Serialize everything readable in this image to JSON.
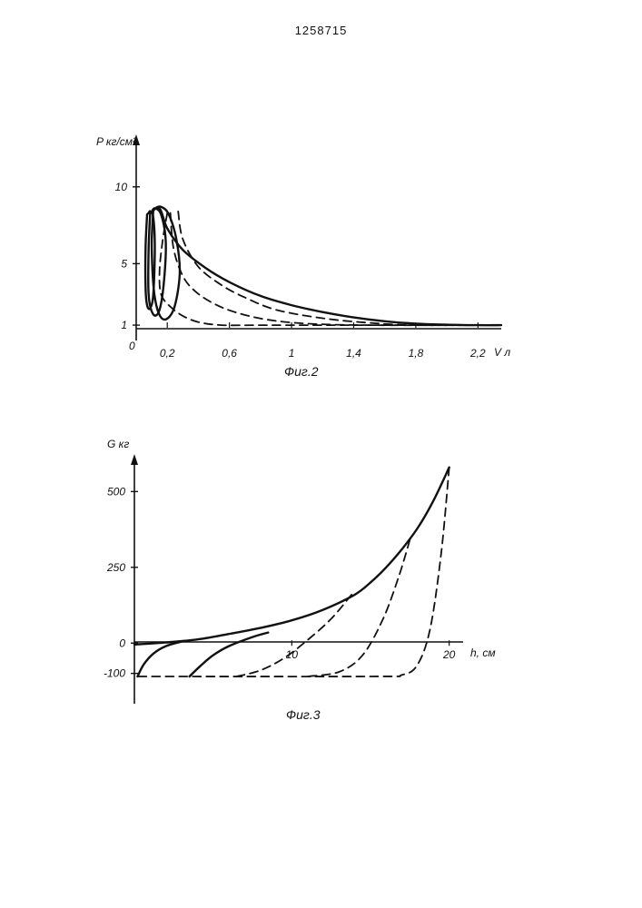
{
  "document": {
    "number": "1258715"
  },
  "figures": [
    {
      "caption": "Фиг.2",
      "y_label": "P кг/см²",
      "x_label": "V л",
      "origin_label": "0"
    },
    {
      "caption": "Фиг.3",
      "y_label": "G кг",
      "x_label": "h, см"
    }
  ],
  "chart_data": [
    {
      "type": "line",
      "title": "Фиг.2",
      "xlabel": "V л",
      "ylabel": "P кг/см²",
      "xlim": [
        0,
        2.35
      ],
      "ylim": [
        0,
        13
      ],
      "x_ticks": [
        {
          "value": 0.2,
          "label": "0,2"
        },
        {
          "value": 0.6,
          "label": "0,6"
        },
        {
          "value": 1.0,
          "label": "1"
        },
        {
          "value": 1.4,
          "label": "1,4"
        },
        {
          "value": 1.8,
          "label": "1,8"
        },
        {
          "value": 2.2,
          "label": "2,2"
        }
      ],
      "y_ticks": [
        {
          "value": 1,
          "label": "1"
        },
        {
          "value": 5,
          "label": "5"
        },
        {
          "value": 10,
          "label": "10"
        }
      ],
      "series": [
        {
          "name": "compression envelope",
          "style": "solid",
          "x": [
            0.09,
            0.15,
            0.2,
            0.3,
            0.45,
            0.6,
            0.8,
            1.0,
            1.2,
            1.4,
            1.6,
            1.8,
            2.0,
            2.2,
            2.35
          ],
          "y": [
            8.3,
            8.6,
            7.3,
            5.9,
            4.7,
            3.8,
            2.9,
            2.3,
            1.85,
            1.5,
            1.25,
            1.1,
            1.03,
            1.0,
            1.0
          ]
        },
        {
          "name": "cycle 1",
          "style": "solid",
          "x": [
            0.07,
            0.06,
            0.06,
            0.07,
            0.09,
            0.11,
            0.12,
            0.11,
            0.09,
            0.08,
            0.07
          ],
          "y": [
            8.2,
            6.0,
            3.5,
            2.3,
            2.1,
            3.0,
            6.0,
            8.0,
            8.4,
            8.3,
            8.2
          ]
        },
        {
          "name": "cycle 2",
          "style": "solid",
          "x": [
            0.09,
            0.08,
            0.08,
            0.11,
            0.15,
            0.18,
            0.19,
            0.16,
            0.12,
            0.1,
            0.09
          ],
          "y": [
            8.3,
            6.0,
            3.0,
            1.7,
            2.0,
            4.0,
            6.5,
            8.2,
            8.6,
            8.4,
            8.3
          ]
        },
        {
          "name": "cycle 3",
          "style": "solid",
          "x": [
            0.11,
            0.1,
            0.12,
            0.17,
            0.24,
            0.28,
            0.26,
            0.21,
            0.16,
            0.12,
            0.11
          ],
          "y": [
            8.5,
            6.0,
            2.8,
            1.4,
            2.0,
            4.3,
            6.5,
            8.2,
            8.7,
            8.6,
            8.5
          ]
        },
        {
          "name": "expansion 1",
          "style": "dashed",
          "x": [
            0.2,
            0.17,
            0.15,
            0.16,
            0.22,
            0.3,
            0.4,
            0.55,
            0.8,
            1.2,
            2.35
          ],
          "y": [
            8.3,
            6.5,
            4.5,
            3.0,
            2.2,
            1.6,
            1.2,
            1.0,
            1.0,
            1.0,
            1.0
          ]
        },
        {
          "name": "expansion 2",
          "style": "dashed",
          "x": [
            0.22,
            0.24,
            0.3,
            0.38,
            0.5,
            0.65,
            0.85,
            1.1,
            1.5,
            2.35
          ],
          "y": [
            8.3,
            6.0,
            4.2,
            3.2,
            2.4,
            1.8,
            1.35,
            1.1,
            1.0,
            1.0
          ]
        },
        {
          "name": "expansion 3",
          "style": "dashed",
          "x": [
            0.27,
            0.3,
            0.4,
            0.55,
            0.7,
            0.9,
            1.2,
            1.5,
            1.8,
            2.35
          ],
          "y": [
            8.4,
            6.6,
            4.8,
            3.6,
            2.8,
            2.0,
            1.45,
            1.15,
            1.0,
            1.0
          ]
        }
      ]
    },
    {
      "type": "line",
      "title": "Фиг.3",
      "xlabel": "h, см",
      "ylabel": "G кг",
      "xlim": [
        0,
        21
      ],
      "ylim": [
        -200,
        600
      ],
      "x_ticks": [
        {
          "value": 10,
          "label": "10"
        },
        {
          "value": 20,
          "label": "20"
        }
      ],
      "y_ticks": [
        {
          "value": -100,
          "label": "-100"
        },
        {
          "value": 0,
          "label": "0"
        },
        {
          "value": 250,
          "label": "250"
        },
        {
          "value": 500,
          "label": "500"
        }
      ],
      "series": [
        {
          "name": "loading envelope",
          "style": "solid",
          "x": [
            0,
            2,
            4,
            6,
            8,
            10,
            12,
            14,
            15,
            16,
            17,
            18,
            19,
            20
          ],
          "y": [
            -5,
            2,
            12,
            30,
            50,
            75,
            110,
            160,
            200,
            250,
            310,
            380,
            470,
            580
          ]
        },
        {
          "name": "branch 1",
          "style": "solid",
          "x": [
            0.2,
            0.6,
            1.2,
            2.0,
            3.0
          ],
          "y": [
            -110,
            -70,
            -35,
            -10,
            5
          ]
        },
        {
          "name": "branch 2",
          "style": "solid",
          "x": [
            3.5,
            4.2,
            5.0,
            6.0,
            7.5,
            8.5
          ],
          "y": [
            -110,
            -75,
            -40,
            -10,
            20,
            35
          ]
        },
        {
          "name": "unloading 1",
          "style": "dashed",
          "x": [
            13.8,
            12.5,
            11.0,
            9.5,
            8.0,
            6.5
          ],
          "y": [
            160,
            80,
            10,
            -50,
            -90,
            -110
          ]
        },
        {
          "name": "unloading 2",
          "style": "dashed",
          "x": [
            17.5,
            16.8,
            15.8,
            14.5,
            13.0,
            11.0
          ],
          "y": [
            340,
            220,
            80,
            -40,
            -95,
            -110
          ]
        },
        {
          "name": "unloading 3",
          "style": "dashed",
          "x": [
            20,
            19.5,
            18.8,
            18.0,
            17.0,
            15.0,
            0.0
          ],
          "y": [
            580,
            300,
            50,
            -70,
            -105,
            -110,
            -110
          ]
        }
      ]
    }
  ]
}
